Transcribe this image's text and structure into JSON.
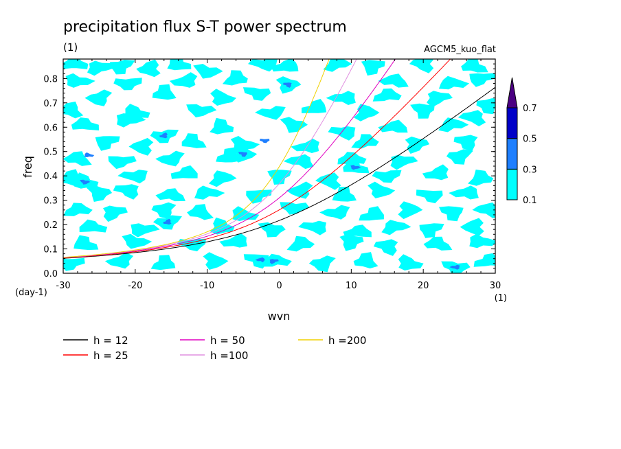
{
  "chart_data": {
    "type": "heatmap",
    "title": "precipitation flux S-T power spectrum",
    "subtitle_left": "(1)",
    "subtitle_right": "AGCM5_kuo_flat",
    "xlabel": "wvn",
    "ylabel": "freq",
    "x_unit_label": "(1)",
    "y_unit_label": "(day-1)",
    "xlim": [
      -30,
      30
    ],
    "ylim": [
      0,
      0.88
    ],
    "x_ticks": [
      -30,
      -20,
      -10,
      0,
      10,
      20,
      30
    ],
    "x_tick_labels": [
      "-30",
      "-20",
      "-10",
      "0",
      "10",
      "20",
      "30"
    ],
    "y_ticks": [
      0,
      0.1,
      0.2,
      0.3,
      0.4,
      0.5,
      0.6,
      0.7,
      0.8
    ],
    "y_tick_labels": [
      "0.0",
      "0.1",
      "0.2",
      "0.3",
      "0.4",
      "0.5",
      "0.6",
      "0.7",
      "0.8"
    ],
    "colorbar": {
      "levels": [
        "0.1",
        "0.3",
        "0.5",
        "0.7"
      ],
      "colors": [
        "#00ffff",
        "#1e7fff",
        "#0000c8",
        "#4b0082"
      ]
    },
    "contour_blobs": [
      {
        "x": -28.5,
        "y": 0.86,
        "level": 0
      },
      {
        "x": -25,
        "y": 0.845,
        "level": 0
      },
      {
        "x": -22,
        "y": 0.85,
        "level": 0
      },
      {
        "x": -18,
        "y": 0.84,
        "level": 0
      },
      {
        "x": -14,
        "y": 0.86,
        "level": 0
      },
      {
        "x": -10,
        "y": 0.83,
        "level": 0
      },
      {
        "x": -2,
        "y": 0.86,
        "level": 0
      },
      {
        "x": 1,
        "y": 0.85,
        "level": 0
      },
      {
        "x": 8,
        "y": 0.86,
        "level": 0
      },
      {
        "x": 13,
        "y": 0.85,
        "level": 0
      },
      {
        "x": 20,
        "y": 0.86,
        "level": 0
      },
      {
        "x": 27,
        "y": 0.85,
        "level": 0
      },
      {
        "x": -28,
        "y": 0.79,
        "level": 0
      },
      {
        "x": -21,
        "y": 0.78,
        "level": 0
      },
      {
        "x": -13,
        "y": 0.79,
        "level": 0
      },
      {
        "x": -6,
        "y": 0.8,
        "level": 0
      },
      {
        "x": 1.2,
        "y": 0.775,
        "level": 0
      },
      {
        "x": 1.2,
        "y": 0.775,
        "level": 1
      },
      {
        "x": 16,
        "y": 0.79,
        "level": 0
      },
      {
        "x": 24,
        "y": 0.78,
        "level": 0
      },
      {
        "x": 28,
        "y": 0.8,
        "level": 0
      },
      {
        "x": -25,
        "y": 0.72,
        "level": 0
      },
      {
        "x": -16,
        "y": 0.74,
        "level": 0
      },
      {
        "x": -8,
        "y": 0.72,
        "level": 0
      },
      {
        "x": -3,
        "y": 0.74,
        "level": 0
      },
      {
        "x": 9,
        "y": 0.72,
        "level": 0
      },
      {
        "x": 15,
        "y": 0.73,
        "level": 0
      },
      {
        "x": 22,
        "y": 0.72,
        "level": 0
      },
      {
        "x": 29,
        "y": 0.69,
        "level": 0
      },
      {
        "x": -29,
        "y": 0.67,
        "level": 0
      },
      {
        "x": -20,
        "y": 0.66,
        "level": 0
      },
      {
        "x": -11,
        "y": 0.67,
        "level": 0
      },
      {
        "x": -1,
        "y": 0.66,
        "level": 0
      },
      {
        "x": 5,
        "y": 0.68,
        "level": 0
      },
      {
        "x": 12,
        "y": 0.66,
        "level": 0
      },
      {
        "x": 20,
        "y": 0.67,
        "level": 0
      },
      {
        "x": 27,
        "y": 0.64,
        "level": 0
      },
      {
        "x": -27,
        "y": 0.61,
        "level": 0
      },
      {
        "x": -21,
        "y": 0.63,
        "level": 0
      },
      {
        "x": -16,
        "y": 0.565,
        "level": 0
      },
      {
        "x": -16,
        "y": 0.565,
        "level": 1
      },
      {
        "x": -8,
        "y": 0.6,
        "level": 0
      },
      {
        "x": 2,
        "y": 0.61,
        "level": 0
      },
      {
        "x": 9,
        "y": 0.58,
        "level": 0
      },
      {
        "x": 16,
        "y": 0.6,
        "level": 0
      },
      {
        "x": 24,
        "y": 0.61,
        "level": 0
      },
      {
        "x": -24,
        "y": 0.54,
        "level": 0
      },
      {
        "x": -19,
        "y": 0.52,
        "level": 0
      },
      {
        "x": -12,
        "y": 0.54,
        "level": 0
      },
      {
        "x": -5,
        "y": 0.53,
        "level": 0
      },
      {
        "x": -2,
        "y": 0.545,
        "level": 1
      },
      {
        "x": 4,
        "y": 0.52,
        "level": 0
      },
      {
        "x": 12,
        "y": 0.54,
        "level": 0
      },
      {
        "x": 19,
        "y": 0.53,
        "level": 0
      },
      {
        "x": 26,
        "y": 0.54,
        "level": 0
      },
      {
        "x": -28,
        "y": 0.47,
        "level": 0
      },
      {
        "x": -26.5,
        "y": 0.485,
        "level": 1
      },
      {
        "x": -22,
        "y": 0.46,
        "level": 0
      },
      {
        "x": -15,
        "y": 0.47,
        "level": 0
      },
      {
        "x": -7,
        "y": 0.48,
        "level": 0
      },
      {
        "x": -5,
        "y": 0.49,
        "level": 0
      },
      {
        "x": -5,
        "y": 0.49,
        "level": 1
      },
      {
        "x": 3,
        "y": 0.46,
        "level": 0
      },
      {
        "x": 10,
        "y": 0.47,
        "level": 0
      },
      {
        "x": 17,
        "y": 0.46,
        "level": 0
      },
      {
        "x": 25,
        "y": 0.48,
        "level": 0
      },
      {
        "x": -29,
        "y": 0.39,
        "level": 0
      },
      {
        "x": -27,
        "y": 0.375,
        "level": 0
      },
      {
        "x": -27,
        "y": 0.375,
        "level": 1
      },
      {
        "x": -20,
        "y": 0.4,
        "level": 0
      },
      {
        "x": -13,
        "y": 0.41,
        "level": 0
      },
      {
        "x": -8,
        "y": 0.39,
        "level": 0
      },
      {
        "x": 0,
        "y": 0.4,
        "level": 0
      },
      {
        "x": 7,
        "y": 0.38,
        "level": 0
      },
      {
        "x": 10.5,
        "y": 0.435,
        "level": 0
      },
      {
        "x": 10.5,
        "y": 0.435,
        "level": 1
      },
      {
        "x": 15,
        "y": 0.4,
        "level": 0
      },
      {
        "x": 22,
        "y": 0.41,
        "level": 0
      },
      {
        "x": 28,
        "y": 0.39,
        "level": 0
      },
      {
        "x": -25,
        "y": 0.33,
        "level": 0
      },
      {
        "x": -21,
        "y": 0.34,
        "level": 0
      },
      {
        "x": -15,
        "y": 0.32,
        "level": 0
      },
      {
        "x": -10,
        "y": 0.33,
        "level": 0
      },
      {
        "x": -3,
        "y": 0.32,
        "level": 0
      },
      {
        "x": 3,
        "y": 0.34,
        "level": 0
      },
      {
        "x": 9,
        "y": 0.32,
        "level": 0
      },
      {
        "x": 14,
        "y": 0.34,
        "level": 0
      },
      {
        "x": 21,
        "y": 0.32,
        "level": 0
      },
      {
        "x": 26,
        "y": 0.33,
        "level": 0
      },
      {
        "x": -28,
        "y": 0.26,
        "level": 0
      },
      {
        "x": -23,
        "y": 0.25,
        "level": 0
      },
      {
        "x": -16,
        "y": 0.26,
        "level": 0
      },
      {
        "x": -11,
        "y": 0.25,
        "level": 0
      },
      {
        "x": -5,
        "y": 0.24,
        "level": 0
      },
      {
        "x": 2,
        "y": 0.27,
        "level": 0
      },
      {
        "x": 8,
        "y": 0.25,
        "level": 0
      },
      {
        "x": 13,
        "y": 0.24,
        "level": 0
      },
      {
        "x": 18,
        "y": 0.26,
        "level": 0
      },
      {
        "x": 24,
        "y": 0.25,
        "level": 0
      },
      {
        "x": 29,
        "y": 0.26,
        "level": 0
      },
      {
        "x": -26,
        "y": 0.19,
        "level": 0
      },
      {
        "x": -19,
        "y": 0.18,
        "level": 0
      },
      {
        "x": -15.5,
        "y": 0.21,
        "level": 0
      },
      {
        "x": -15.5,
        "y": 0.21,
        "level": 1
      },
      {
        "x": -8,
        "y": 0.19,
        "level": 0
      },
      {
        "x": -1,
        "y": 0.18,
        "level": 0
      },
      {
        "x": 5,
        "y": 0.19,
        "level": 0
      },
      {
        "x": 11,
        "y": 0.17,
        "level": 0
      },
      {
        "x": 16,
        "y": 0.19,
        "level": 0
      },
      {
        "x": 21,
        "y": 0.18,
        "level": 0
      },
      {
        "x": 27,
        "y": 0.19,
        "level": 0
      },
      {
        "x": -27,
        "y": 0.12,
        "level": 0
      },
      {
        "x": -20,
        "y": 0.13,
        "level": 0
      },
      {
        "x": -12,
        "y": 0.12,
        "level": 0
      },
      {
        "x": -6,
        "y": 0.13,
        "level": 0
      },
      {
        "x": 3,
        "y": 0.12,
        "level": 0
      },
      {
        "x": 10,
        "y": 0.13,
        "level": 0
      },
      {
        "x": 15,
        "y": 0.11,
        "level": 0
      },
      {
        "x": 22,
        "y": 0.12,
        "level": 0
      },
      {
        "x": 28,
        "y": 0.13,
        "level": 0
      },
      {
        "x": -29,
        "y": 0.04,
        "level": 0
      },
      {
        "x": -22,
        "y": 0.05,
        "level": 0
      },
      {
        "x": -16,
        "y": 0.04,
        "level": 0
      },
      {
        "x": -9,
        "y": 0.05,
        "level": 0
      },
      {
        "x": -3,
        "y": 0.055,
        "level": 0
      },
      {
        "x": -2.5,
        "y": 0.055,
        "level": 1
      },
      {
        "x": -0.5,
        "y": 0.05,
        "level": 0
      },
      {
        "x": -0.8,
        "y": 0.05,
        "level": 1
      },
      {
        "x": 6,
        "y": 0.04,
        "level": 0
      },
      {
        "x": 12,
        "y": 0.05,
        "level": 0
      },
      {
        "x": 18,
        "y": 0.04,
        "level": 0
      },
      {
        "x": 24.5,
        "y": 0.025,
        "level": 0
      },
      {
        "x": 24.5,
        "y": 0.025,
        "level": 1
      },
      {
        "x": 29,
        "y": 0.05,
        "level": 0
      }
    ],
    "series": [
      {
        "name": "h = 12",
        "color": "#000000",
        "equivalent_depth": 12
      },
      {
        "name": "h = 25",
        "color": "#ff0000",
        "equivalent_depth": 25
      },
      {
        "name": "h = 50",
        "color": "#e000c0",
        "equivalent_depth": 50
      },
      {
        "name": "h =100",
        "color": "#e090e0",
        "equivalent_depth": 100
      },
      {
        "name": "h =200",
        "color": "#f0d000",
        "equivalent_depth": 200
      }
    ],
    "legend_placement": "bottom"
  }
}
